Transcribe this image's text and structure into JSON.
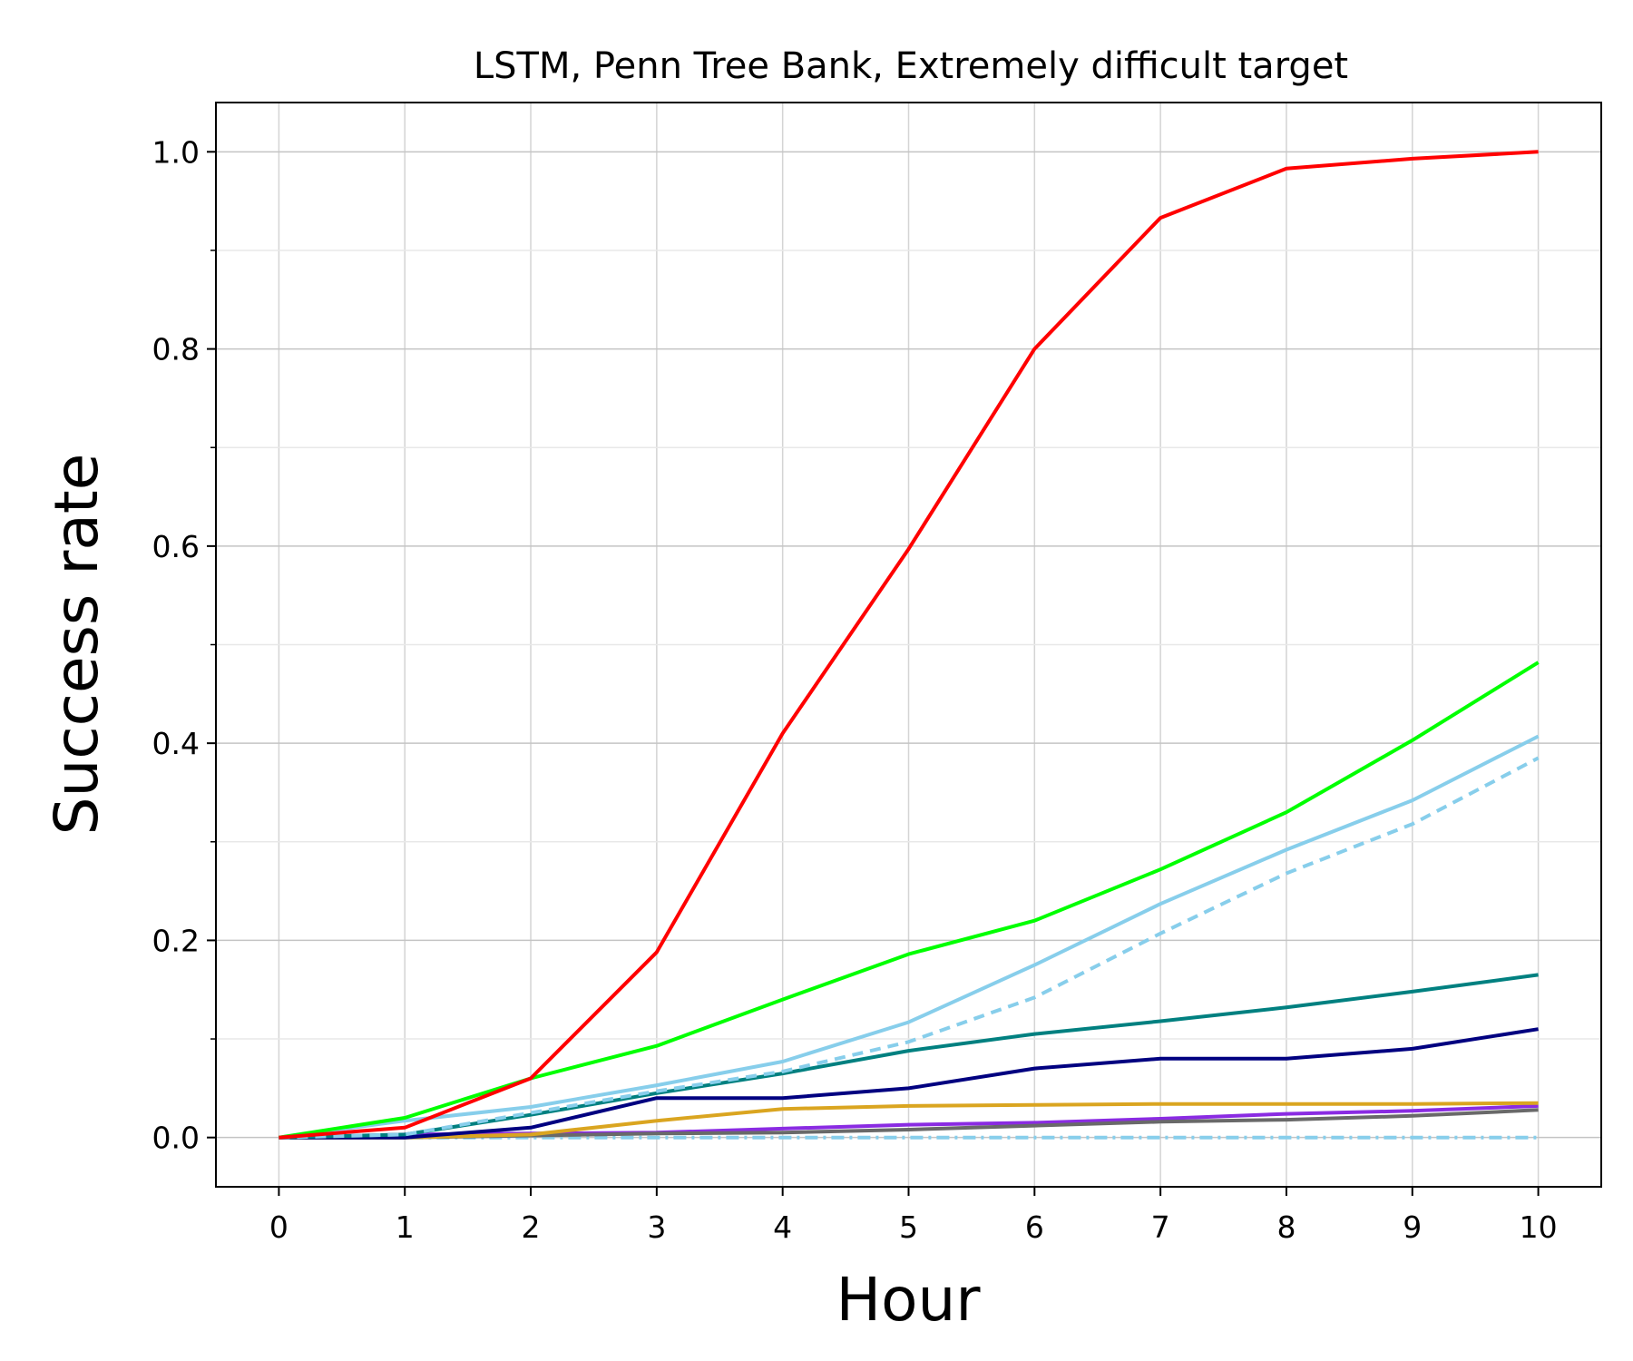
{
  "chart_data": {
    "type": "line",
    "title": "LSTM, Penn Tree Bank, Extremely difficult target",
    "xlabel": "Hour",
    "ylabel": "Success rate",
    "x": [
      0,
      1,
      2,
      3,
      4,
      5,
      6,
      7,
      8,
      9,
      10
    ],
    "xlim": [
      -0.5,
      10.5
    ],
    "ylim": [
      -0.05,
      1.05
    ],
    "x_ticks": [
      "0",
      "1",
      "2",
      "3",
      "4",
      "5",
      "6",
      "7",
      "8",
      "9",
      "10"
    ],
    "y_ticks": [
      "0.0",
      "0.2",
      "0.4",
      "0.6",
      "0.8",
      "1.0"
    ],
    "y_tick_values": [
      0.0,
      0.2,
      0.4,
      0.6,
      0.8,
      1.0
    ],
    "y_minor_tick_values": [
      0.1,
      0.3,
      0.5,
      0.7,
      0.9
    ],
    "grid": true,
    "legend": "none",
    "series": [
      {
        "color": "#ff0000",
        "style": "solid",
        "values": [
          0.0,
          0.01,
          0.06,
          0.188,
          0.41,
          0.597,
          0.8,
          0.933,
          0.983,
          0.993,
          1.0
        ]
      },
      {
        "color": "#00ff00",
        "style": "solid",
        "values": [
          0.0,
          0.02,
          0.06,
          0.093,
          0.14,
          0.186,
          0.22,
          0.272,
          0.33,
          0.403,
          0.482
        ]
      },
      {
        "color": "#87ceeb",
        "style": "solid",
        "values": [
          0.0,
          0.017,
          0.031,
          0.053,
          0.077,
          0.117,
          0.175,
          0.237,
          0.292,
          0.342,
          0.407
        ]
      },
      {
        "color": "#87ceeb",
        "style": "dashed",
        "values": [
          0.0,
          0.003,
          0.025,
          0.047,
          0.067,
          0.097,
          0.142,
          0.207,
          0.268,
          0.318,
          0.385
        ]
      },
      {
        "color": "#008080",
        "style": "solid",
        "values": [
          0.0,
          0.003,
          0.023,
          0.045,
          0.065,
          0.088,
          0.105,
          0.118,
          0.132,
          0.148,
          0.165
        ]
      },
      {
        "color": "#000080",
        "style": "solid",
        "values": [
          0.0,
          0.0,
          0.01,
          0.04,
          0.04,
          0.05,
          0.07,
          0.08,
          0.08,
          0.09,
          0.11
        ]
      },
      {
        "color": "#daa520",
        "style": "solid",
        "values": [
          0.0,
          0.0,
          0.003,
          0.017,
          0.029,
          0.032,
          0.033,
          0.034,
          0.034,
          0.034,
          0.035
        ]
      },
      {
        "color": "#696969",
        "style": "solid",
        "values": [
          0.0,
          0.0,
          0.002,
          0.004,
          0.005,
          0.008,
          0.012,
          0.016,
          0.018,
          0.022,
          0.028
        ]
      },
      {
        "color": "#8a2be2",
        "style": "solid",
        "values": [
          0.0,
          0.003,
          0.004,
          0.005,
          0.009,
          0.013,
          0.015,
          0.019,
          0.024,
          0.027,
          0.032
        ]
      },
      {
        "color": "#87ceeb",
        "style": "dashdot",
        "values": [
          0.0,
          0.0,
          0.0,
          0.0,
          0.0,
          0.0,
          0.0,
          0.0,
          0.0,
          0.0,
          0.0
        ]
      }
    ]
  }
}
